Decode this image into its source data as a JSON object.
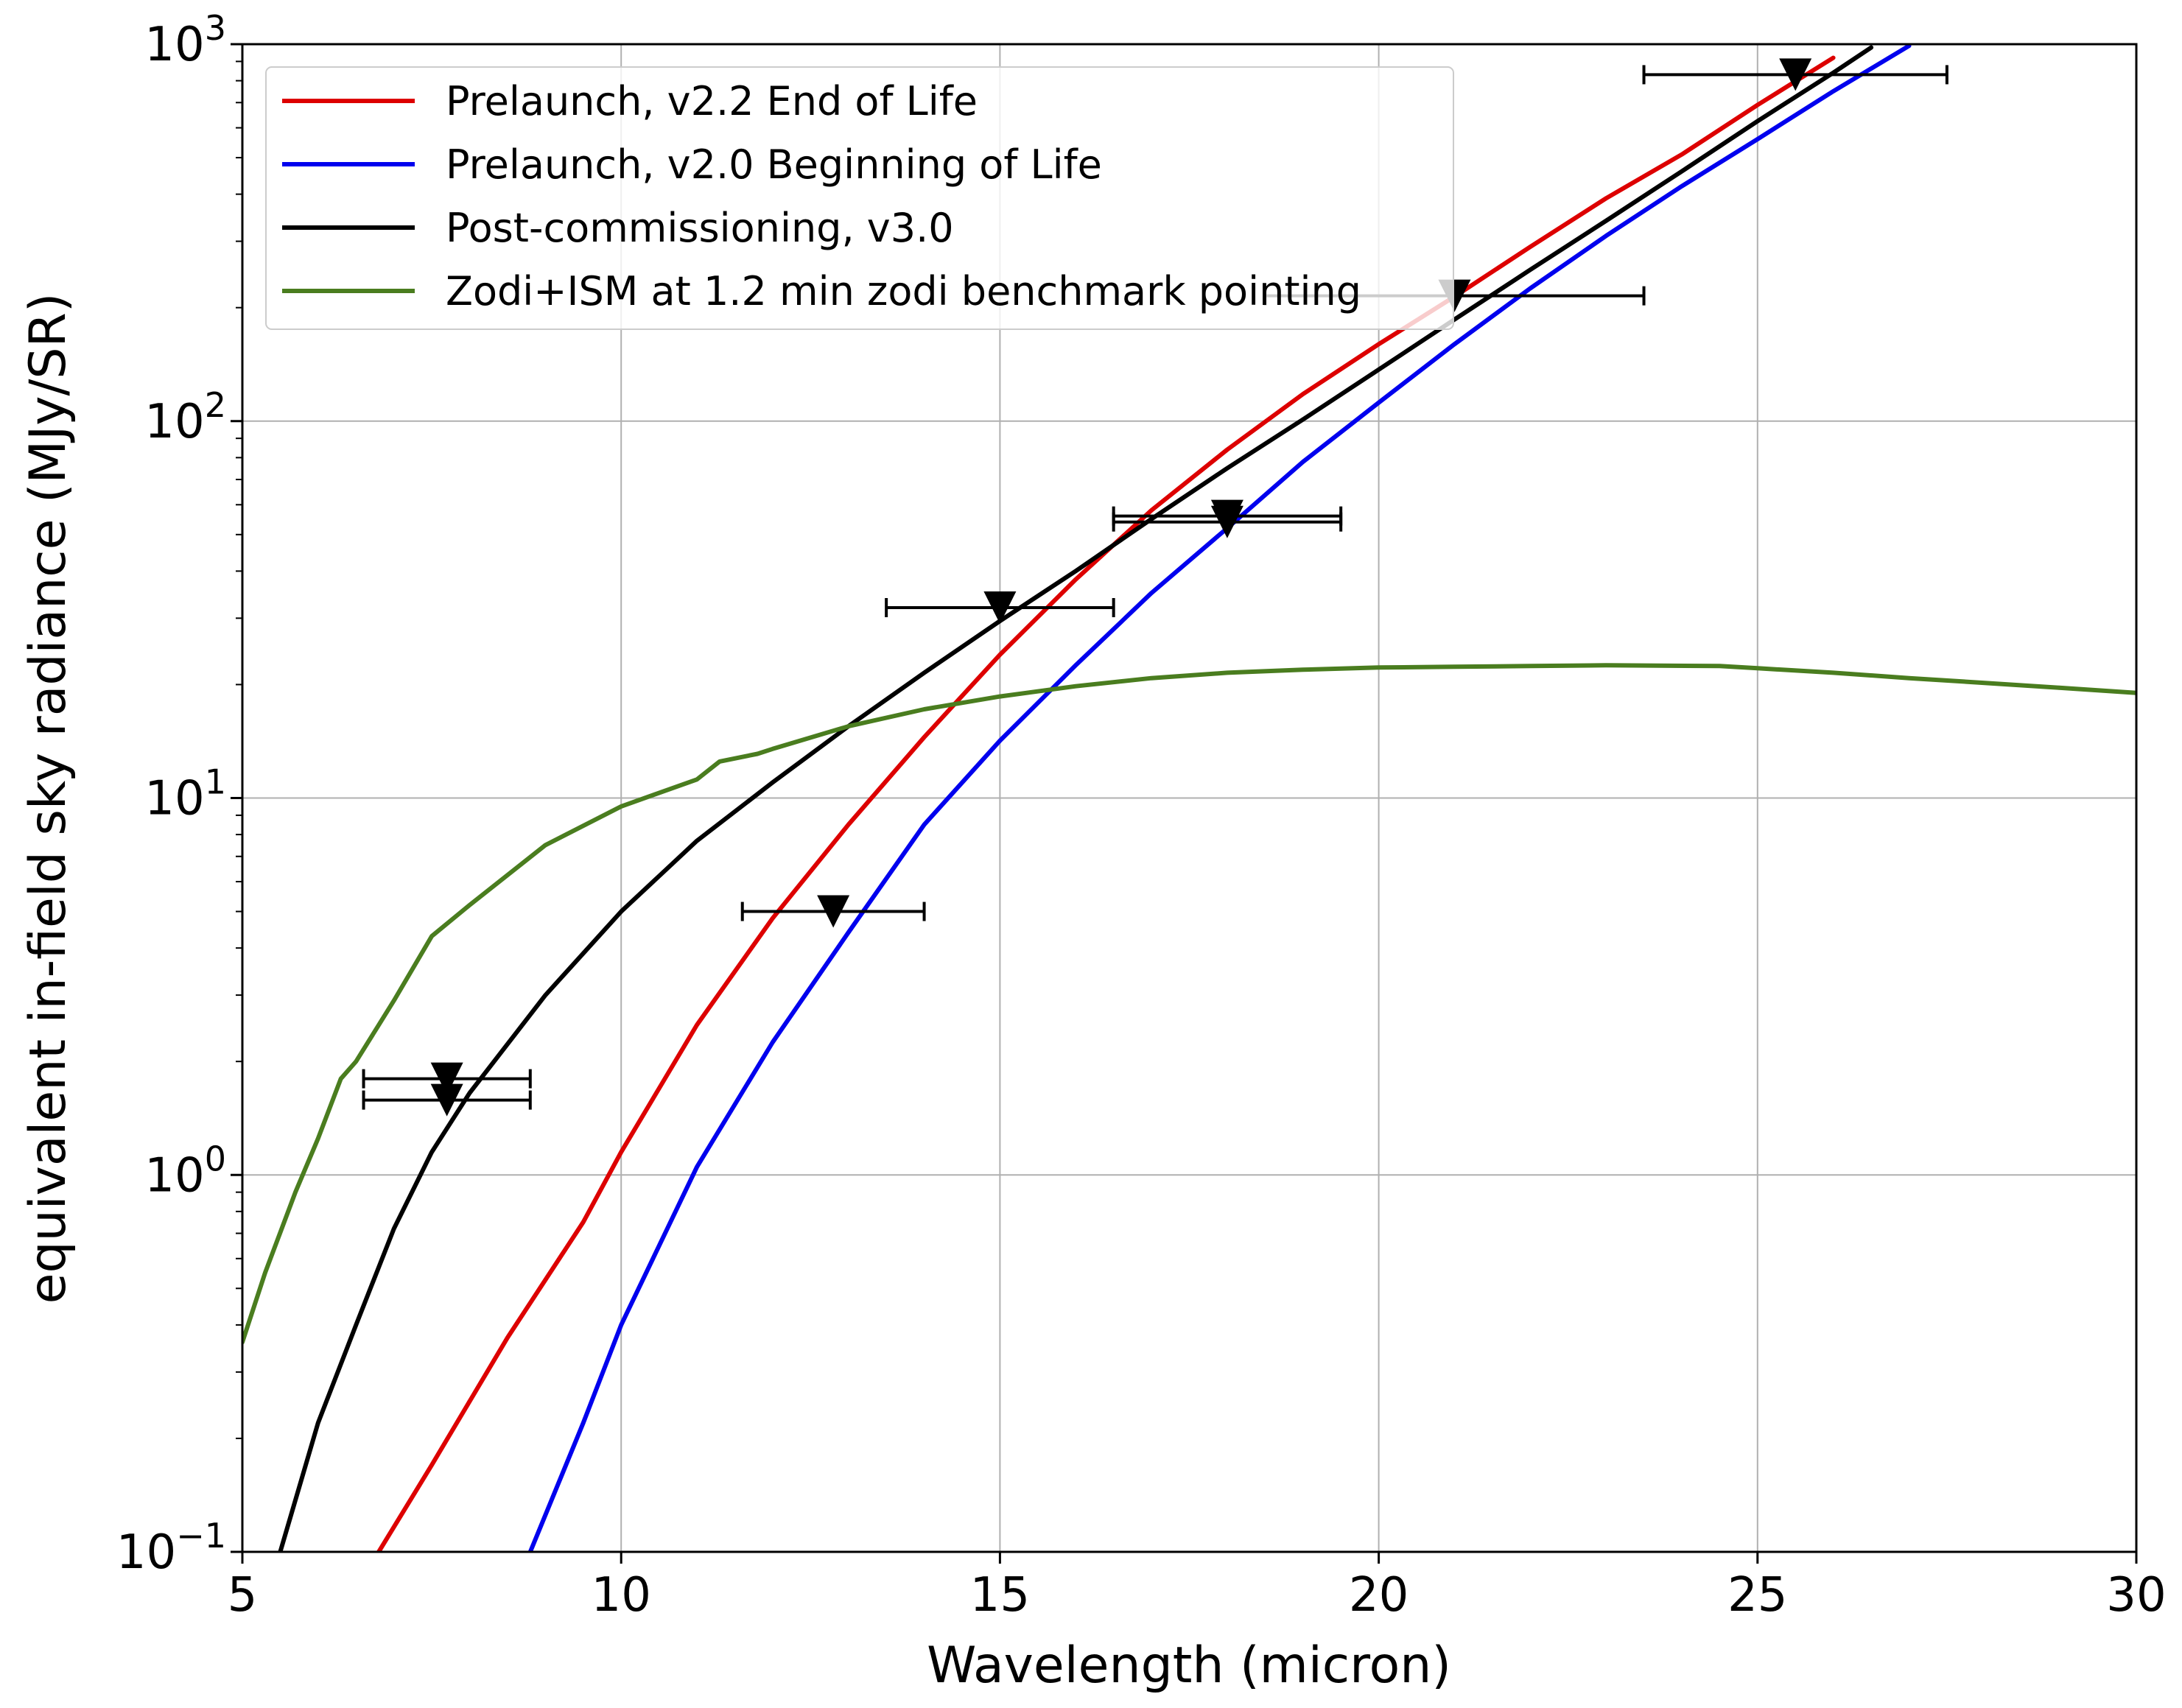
{
  "chart_data": {
    "type": "line",
    "xlabel": "Wavelength (micron)",
    "ylabel": "equivalent in-field sky radiance (MJy/SR)",
    "xlim": [
      5,
      30
    ],
    "ylim": [
      0.1,
      1000
    ],
    "yscale": "log",
    "grid": true,
    "legend_position": "top-left",
    "x_ticks": [
      {
        "value": 5,
        "label": "5"
      },
      {
        "value": 10,
        "label": "10"
      },
      {
        "value": 15,
        "label": "15"
      },
      {
        "value": 20,
        "label": "20"
      },
      {
        "value": 25,
        "label": "25"
      },
      {
        "value": 30,
        "label": "30"
      }
    ],
    "y_ticks": [
      {
        "value": 0.1,
        "base": "10",
        "exp": "−1"
      },
      {
        "value": 1,
        "base": "10",
        "exp": "0"
      },
      {
        "value": 10,
        "base": "10",
        "exp": "1"
      },
      {
        "value": 100,
        "base": "10",
        "exp": "2"
      },
      {
        "value": 1000,
        "base": "10",
        "exp": "3"
      }
    ],
    "series": [
      {
        "name": "Prelaunch, v2.2 End of Life",
        "color": "#dd0000",
        "x": [
          6.8,
          7.5,
          8.5,
          9.5,
          10,
          11,
          12,
          13,
          14,
          15,
          16,
          17,
          18,
          19,
          20,
          21,
          22,
          23,
          24,
          25,
          26
        ],
        "y": [
          0.1,
          0.17,
          0.37,
          0.75,
          1.15,
          2.5,
          4.8,
          8.5,
          14.5,
          24,
          38,
          58,
          84,
          118,
          160,
          214,
          290,
          390,
          510,
          690,
          920
        ]
      },
      {
        "name": "Prelaunch, v2.0 Beginning of Life",
        "color": "#0000ee",
        "x": [
          8.8,
          9.5,
          10,
          11,
          12,
          13,
          14,
          15,
          16,
          17,
          18,
          19,
          20,
          21,
          22,
          23,
          24,
          25,
          26,
          27
        ],
        "y": [
          0.1,
          0.22,
          0.4,
          1.05,
          2.25,
          4.4,
          8.5,
          14.2,
          22.5,
          35,
          52,
          78,
          112,
          160,
          225,
          310,
          420,
          560,
          750,
          990
        ]
      },
      {
        "name": "Post-commissioning, v3.0",
        "color": "#000000",
        "x": [
          5.5,
          6,
          6.5,
          7,
          7.5,
          8,
          9,
          10,
          11,
          12,
          13,
          14,
          15,
          16,
          17,
          18,
          19,
          20,
          21,
          22,
          23,
          24,
          25,
          26,
          26.5
        ],
        "y": [
          0.1,
          0.22,
          0.4,
          0.72,
          1.15,
          1.65,
          3.0,
          5.0,
          7.7,
          11,
          15.5,
          21.5,
          29.5,
          40,
          55,
          75,
          101,
          137,
          186,
          252,
          340,
          460,
          625,
          840,
          980
        ]
      },
      {
        "name": "Zodi+ISM at 1.2 min zodi benchmark pointing",
        "color": "#4a7d1f",
        "x": [
          5,
          5.3,
          5.7,
          6,
          6.3,
          6.5,
          7,
          7.5,
          8,
          9,
          10,
          11,
          11.3,
          11.8,
          12,
          13,
          14,
          15,
          16,
          17,
          18,
          19,
          20,
          21,
          22,
          23,
          24.5,
          25,
          26,
          27,
          28,
          29,
          30
        ],
        "y": [
          0.36,
          0.55,
          0.9,
          1.25,
          1.8,
          2.0,
          2.9,
          4.3,
          5.2,
          7.5,
          9.5,
          11.2,
          12.5,
          13.1,
          13.5,
          15.5,
          17.2,
          18.6,
          19.8,
          20.8,
          21.5,
          21.9,
          22.2,
          22.3,
          22.4,
          22.5,
          22.4,
          22.1,
          21.5,
          20.8,
          20.2,
          19.6,
          19.0
        ]
      }
    ],
    "errorbar_points": [
      {
        "x": 7.7,
        "y": 1.8,
        "xerr": [
          6.6,
          8.8
        ]
      },
      {
        "x": 7.7,
        "y": 1.58,
        "xerr": [
          6.6,
          8.8
        ]
      },
      {
        "x": 12.8,
        "y": 5.0,
        "xerr": [
          11.6,
          14.0
        ]
      },
      {
        "x": 15.0,
        "y": 32,
        "xerr": [
          13.5,
          16.5
        ]
      },
      {
        "x": 18.0,
        "y": 56,
        "xerr": [
          16.5,
          19.5
        ]
      },
      {
        "x": 18.0,
        "y": 54,
        "xerr": [
          16.5,
          19.5
        ]
      },
      {
        "x": 21.0,
        "y": 215,
        "xerr": [
          18.5,
          23.5
        ]
      },
      {
        "x": 25.5,
        "y": 830,
        "xerr": [
          23.5,
          27.5
        ]
      }
    ]
  }
}
